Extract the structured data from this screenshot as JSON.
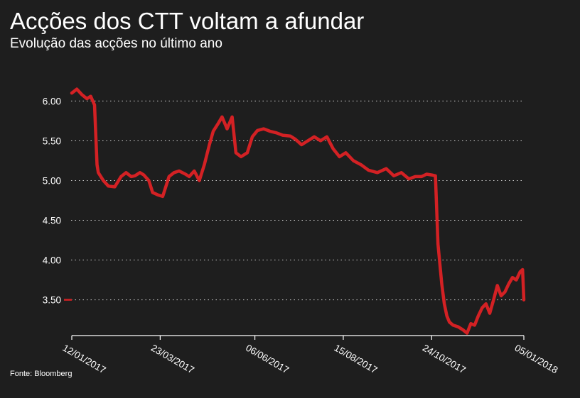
{
  "chart_data": {
    "type": "line",
    "title": "Acções dos CTT voltam a afundar",
    "subtitle": "Evolução das acções no último ano",
    "source": "Fonte: Bloomberg",
    "ylim": [
      3.05,
      6.2
    ],
    "yticks": [
      "6.00",
      "5.50",
      "5.00",
      "4.50",
      "4.00",
      "3.50"
    ],
    "xlim": [
      "2017-01-12",
      "2018-01-05"
    ],
    "xticks": [
      "12/01/2017",
      "23/03/2017",
      "06/06/2017",
      "15/08/2017",
      "24/10/2017",
      "05/01/2018"
    ],
    "grid": true,
    "last_value": 3.5,
    "colors": {
      "line": "#d32124",
      "background": "#1e1e1e",
      "text": "#ffffff",
      "grid": "#cfcfcf"
    },
    "series": [
      {
        "x": [
          "2017-01-12",
          "2017-01-16",
          "2017-01-20",
          "2017-01-24",
          "2017-01-27",
          "2017-01-30",
          "2017-02-01",
          "2017-02-02",
          "2017-02-06",
          "2017-02-10",
          "2017-02-15",
          "2017-02-20",
          "2017-02-24",
          "2017-02-28",
          "2017-03-03",
          "2017-03-07",
          "2017-03-10",
          "2017-03-14",
          "2017-03-17",
          "2017-03-21",
          "2017-03-25",
          "2017-03-30",
          "2017-04-03",
          "2017-04-07",
          "2017-04-12",
          "2017-04-15",
          "2017-04-19",
          "2017-04-23",
          "2017-04-27",
          "2017-05-01",
          "2017-05-04",
          "2017-05-08",
          "2017-05-11",
          "2017-05-15",
          "2017-05-19",
          "2017-05-22",
          "2017-05-26",
          "2017-05-31",
          "2017-06-04",
          "2017-06-08",
          "2017-06-13",
          "2017-06-18",
          "2017-06-23",
          "2017-06-28",
          "2017-07-04",
          "2017-07-08",
          "2017-07-13",
          "2017-07-18",
          "2017-07-23",
          "2017-07-28",
          "2017-08-02",
          "2017-08-07",
          "2017-08-12",
          "2017-08-17",
          "2017-08-23",
          "2017-08-29",
          "2017-09-04",
          "2017-09-11",
          "2017-09-18",
          "2017-09-24",
          "2017-09-30",
          "2017-10-06",
          "2017-10-11",
          "2017-10-16",
          "2017-10-20",
          "2017-10-24",
          "2017-10-27",
          "2017-10-29",
          "2017-11-01",
          "2017-11-03",
          "2017-11-05",
          "2017-11-07",
          "2017-11-10",
          "2017-11-14",
          "2017-11-18",
          "2017-11-21",
          "2017-11-24",
          "2017-11-27",
          "2017-11-30",
          "2017-12-03",
          "2017-12-06",
          "2017-12-09",
          "2017-12-12",
          "2017-12-15",
          "2017-12-18",
          "2017-12-21",
          "2017-12-24",
          "2017-12-27",
          "2017-12-30",
          "2018-01-02",
          "2018-01-04",
          "2018-01-05"
        ],
        "y": [
          6.1,
          6.15,
          6.08,
          6.03,
          6.06,
          5.95,
          5.2,
          5.1,
          5.0,
          4.93,
          4.92,
          5.05,
          5.1,
          5.05,
          5.06,
          5.1,
          5.07,
          5.0,
          4.85,
          4.82,
          4.8,
          5.05,
          5.1,
          5.12,
          5.08,
          5.05,
          5.12,
          5.0,
          5.2,
          5.45,
          5.62,
          5.72,
          5.8,
          5.65,
          5.8,
          5.35,
          5.3,
          5.35,
          5.55,
          5.63,
          5.65,
          5.62,
          5.6,
          5.57,
          5.56,
          5.52,
          5.45,
          5.5,
          5.55,
          5.5,
          5.55,
          5.4,
          5.3,
          5.35,
          5.25,
          5.2,
          5.13,
          5.1,
          5.15,
          5.06,
          5.1,
          5.02,
          5.05,
          5.05,
          5.08,
          5.07,
          5.06,
          4.2,
          3.7,
          3.45,
          3.3,
          3.22,
          3.18,
          3.16,
          3.12,
          3.08,
          3.2,
          3.18,
          3.3,
          3.4,
          3.45,
          3.33,
          3.5,
          3.68,
          3.55,
          3.6,
          3.7,
          3.78,
          3.75,
          3.85,
          3.88,
          3.5
        ]
      }
    ]
  }
}
